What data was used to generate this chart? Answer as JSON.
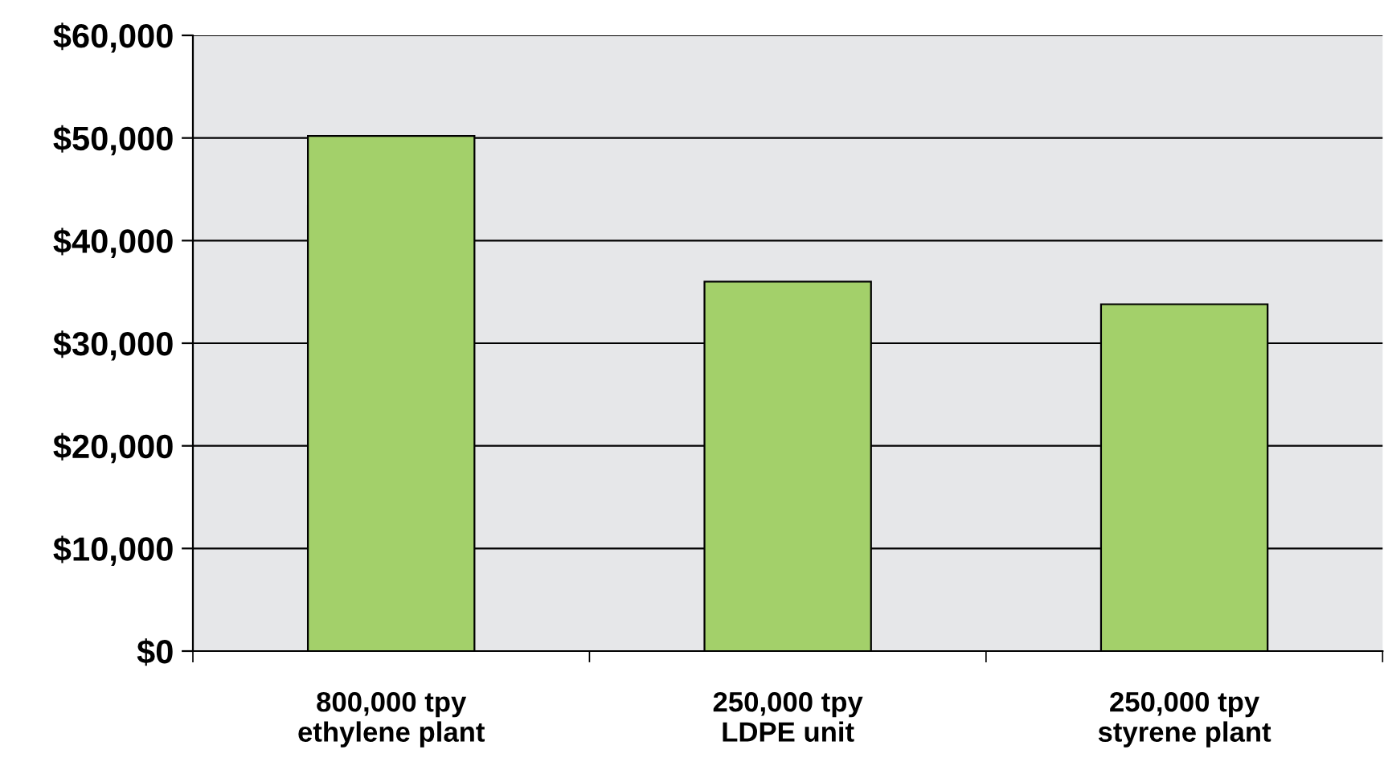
{
  "chart_data": {
    "type": "bar",
    "categories": [
      "800,000 tpy\nethylene plant",
      "250,000 tpy\nLDPE unit",
      "250,000 tpy\nstyrene plant"
    ],
    "values": [
      50200,
      36000,
      33800
    ],
    "color": "#a3d06a",
    "ylim": [
      0,
      60000
    ],
    "yticks": [
      {
        "value": 0,
        "label": "$0"
      },
      {
        "value": 10000,
        "label": "$10,000"
      },
      {
        "value": 20000,
        "label": "$20,000"
      },
      {
        "value": 30000,
        "label": "$30,000"
      },
      {
        "value": 40000,
        "label": "$40,000"
      },
      {
        "value": 50000,
        "label": "$50,000"
      },
      {
        "value": 60000,
        "label": "$60,000"
      }
    ],
    "grid": "y",
    "legend": false
  }
}
